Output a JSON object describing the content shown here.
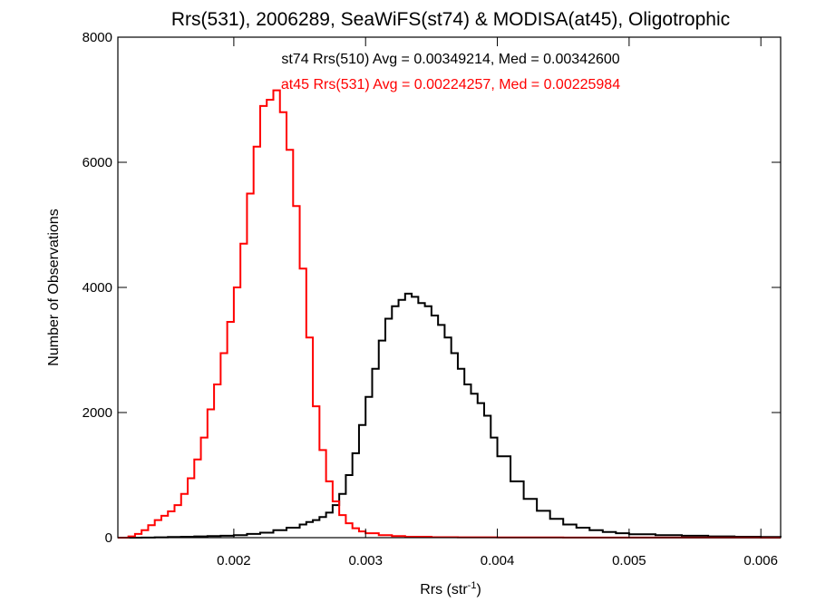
{
  "chart_data": {
    "type": "line",
    "step": true,
    "title": "Rrs(531), 2006289, SeaWiFS(st74) & MODISA(at45), Oligotrophic",
    "xlabel": "Rrs (str",
    "xlabel_sup": "-1",
    "xlabel_suffix": ")",
    "ylabel": "Number of Observations",
    "xlim": [
      0.00112,
      0.00615
    ],
    "ylim": [
      0,
      8000
    ],
    "x_ticks": [
      0.002,
      0.003,
      0.004,
      0.005,
      0.006
    ],
    "x_tick_labels": [
      "0.002",
      "0.003",
      "0.004",
      "0.005",
      "0.006"
    ],
    "y_ticks": [
      0,
      2000,
      4000,
      6000,
      8000
    ],
    "y_tick_labels": [
      "0",
      "2000",
      "4000",
      "6000",
      "8000"
    ],
    "grid": false,
    "annotations": [
      {
        "text": "st74 Rrs(510) Avg = 0.00349214, Med = 0.00342600",
        "color": "#000000"
      },
      {
        "text": "at45 Rrs(531) Avg = 0.00224257, Med = 0.00225984",
        "color": "#ff0000"
      }
    ],
    "series": [
      {
        "color": "#000000",
        "x": [
          0.00112,
          0.0012,
          0.0013,
          0.0014,
          0.0015,
          0.0016,
          0.0017,
          0.0018,
          0.0019,
          0.002,
          0.0021,
          0.0022,
          0.0023,
          0.0024,
          0.0025,
          0.00255,
          0.0026,
          0.00265,
          0.0027,
          0.00275,
          0.0028,
          0.00285,
          0.0029,
          0.00295,
          0.003,
          0.00305,
          0.0031,
          0.00315,
          0.0032,
          0.00325,
          0.0033,
          0.00335,
          0.0034,
          0.00345,
          0.0035,
          0.00355,
          0.0036,
          0.00365,
          0.0037,
          0.00375,
          0.0038,
          0.00385,
          0.0039,
          0.00395,
          0.004,
          0.0041,
          0.0042,
          0.0043,
          0.0044,
          0.0045,
          0.0046,
          0.0047,
          0.0048,
          0.0049,
          0.005,
          0.0052,
          0.0054,
          0.0056,
          0.0058,
          0.006,
          0.00615
        ],
        "y": [
          0,
          0,
          2,
          5,
          10,
          15,
          20,
          25,
          30,
          40,
          60,
          80,
          120,
          160,
          210,
          250,
          280,
          330,
          400,
          520,
          700,
          1000,
          1350,
          1800,
          2250,
          2700,
          3150,
          3500,
          3700,
          3800,
          3900,
          3850,
          3750,
          3700,
          3550,
          3400,
          3200,
          2950,
          2700,
          2450,
          2300,
          2150,
          1950,
          1600,
          1300,
          900,
          620,
          430,
          300,
          210,
          160,
          120,
          90,
          70,
          55,
          40,
          30,
          20,
          15,
          10,
          8
        ]
      },
      {
        "color": "#ff0000",
        "x": [
          0.00112,
          0.0012,
          0.00125,
          0.0013,
          0.00135,
          0.0014,
          0.00145,
          0.0015,
          0.00155,
          0.0016,
          0.00165,
          0.0017,
          0.00175,
          0.0018,
          0.00185,
          0.0019,
          0.00195,
          0.002,
          0.00205,
          0.0021,
          0.00215,
          0.0022,
          0.00225,
          0.0023,
          0.00235,
          0.0024,
          0.00245,
          0.0025,
          0.00255,
          0.0026,
          0.00265,
          0.0027,
          0.00275,
          0.0028,
          0.00285,
          0.0029,
          0.00295,
          0.003,
          0.0031,
          0.0032,
          0.0033,
          0.0035,
          0.0037,
          0.004,
          0.0045,
          0.005,
          0.0055,
          0.006,
          0.00615
        ],
        "y": [
          0,
          20,
          60,
          120,
          200,
          280,
          350,
          420,
          520,
          700,
          950,
          1250,
          1600,
          2050,
          2450,
          2950,
          3450,
          4000,
          4700,
          5500,
          6250,
          6900,
          7000,
          7150,
          6800,
          6200,
          5300,
          4300,
          3200,
          2100,
          1400,
          900,
          580,
          360,
          230,
          150,
          100,
          70,
          40,
          25,
          15,
          8,
          5,
          3,
          2,
          1,
          1,
          0,
          0
        ]
      }
    ]
  }
}
